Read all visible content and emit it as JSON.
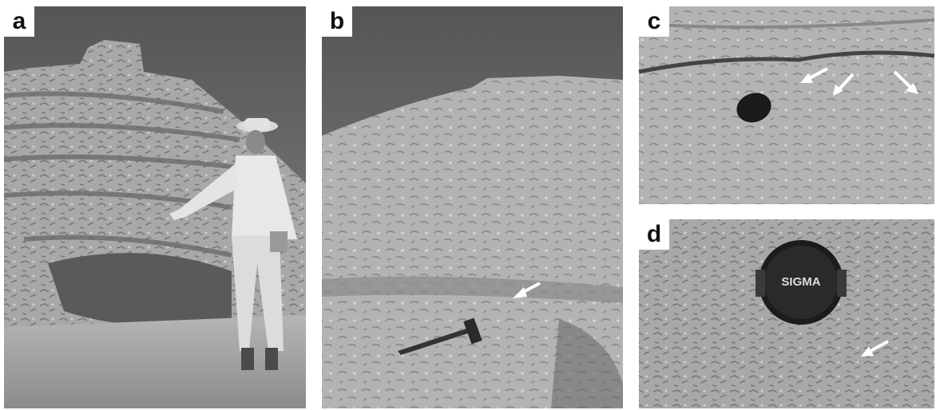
{
  "panels": [
    {
      "label": "a"
    },
    {
      "label": "b"
    },
    {
      "label": "c"
    },
    {
      "label": "d",
      "cap_text": "SIGMA"
    }
  ]
}
